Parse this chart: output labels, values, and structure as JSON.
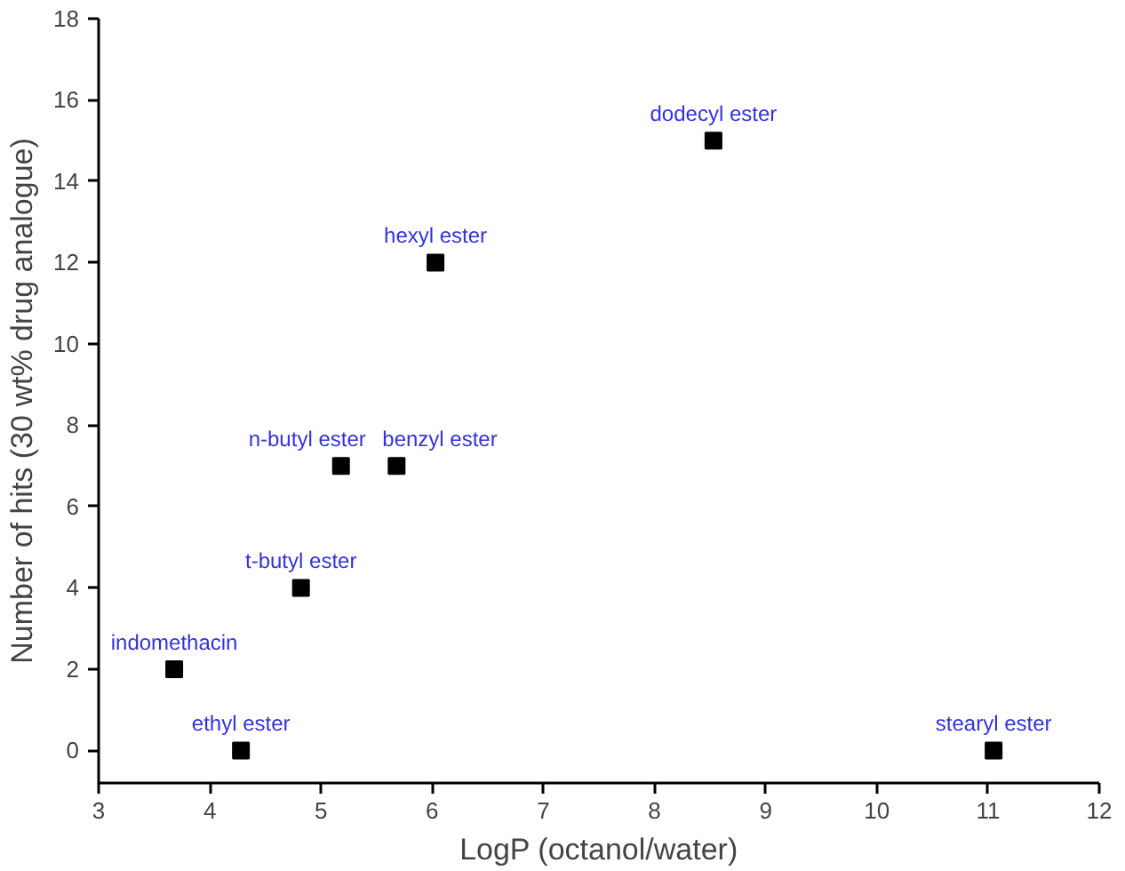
{
  "chart_data": {
    "type": "scatter",
    "xlabel": "LogP (octanol/water)",
    "ylabel": "Number of hits (30 wt% drug analogue)",
    "x": [
      3.68,
      4.28,
      4.82,
      5.18,
      5.68,
      6.03,
      8.53,
      11.05
    ],
    "series": [
      {
        "color": "#000000",
        "values": [
          2,
          0,
          4,
          7,
          7,
          12,
          15,
          0
        ]
      }
    ],
    "annotations": [
      {
        "text": "indomethacin",
        "x": 3.68,
        "y": 2
      },
      {
        "text": "ethyl ester",
        "x": 4.28,
        "y": 0
      },
      {
        "text": "t-butyl ester",
        "x": 4.82,
        "y": 4
      },
      {
        "text": "n-butyl ester",
        "x": 5.18,
        "y": 7
      },
      {
        "text": "benzyl ester",
        "x": 5.68,
        "y": 7
      },
      {
        "text": "hexyl ester",
        "x": 6.03,
        "y": 12
      },
      {
        "text": "dodecyl ester",
        "x": 8.53,
        "y": 15
      },
      {
        "text": "stearyl ester",
        "x": 11.05,
        "y": 0
      }
    ],
    "xlim": [
      3,
      12
    ],
    "xticks": [
      3,
      4,
      5,
      6,
      7,
      8,
      9,
      10,
      11,
      12
    ],
    "ylim": [
      -0.8,
      18
    ],
    "yticks": [
      0,
      2,
      4,
      6,
      8,
      10,
      12,
      14,
      16,
      18
    ],
    "marker": "square",
    "grid": false
  }
}
